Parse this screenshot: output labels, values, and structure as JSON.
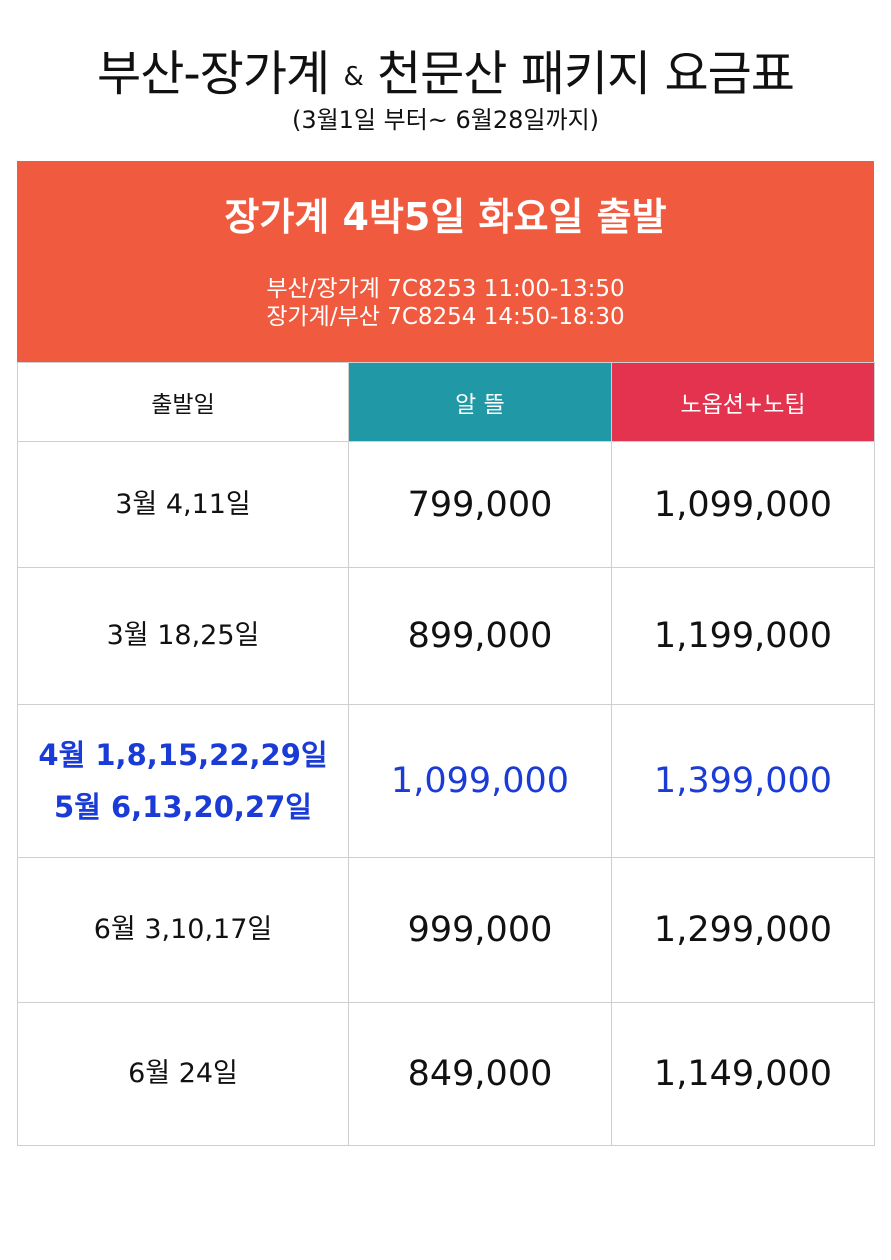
{
  "header": {
    "title_main": "부산-장가계",
    "title_amp": "&",
    "title_rest": "천문산 패키지 요금표",
    "subtitle": "(3월1일 부터~ 6월28일까지)"
  },
  "banner": {
    "title": "장가계 4박5일 화요일 출발",
    "flight_out": "부산/장가계 7C8253 11:00-13:50",
    "flight_return": "장가계/부산 7C8254 14:50-18:30",
    "color": "#f05a3e"
  },
  "table": {
    "columns": [
      {
        "label": "출발일",
        "color": "#ffffff"
      },
      {
        "label": "알 뜰",
        "color": "#2098a6"
      },
      {
        "label": "노옵션+노팁",
        "color": "#e3334e"
      }
    ],
    "rows": [
      {
        "date_line1": "3월 4,11일",
        "date_line2": "",
        "basic": "799,000",
        "premium": "1,099,000",
        "highlight": false
      },
      {
        "date_line1": "3월 18,25일",
        "date_line2": "",
        "basic": "899,000",
        "premium": "1,199,000",
        "highlight": false
      },
      {
        "date_line1": "4월 1,8,15,22,29일",
        "date_line2": "5월 6,13,20,27일",
        "basic": "1,099,000",
        "premium": "1,399,000",
        "highlight": true
      },
      {
        "date_line1": "6월 3,10,17일",
        "date_line2": "",
        "basic": "999,000",
        "premium": "1,299,000",
        "highlight": false
      },
      {
        "date_line1": "6월 24일",
        "date_line2": "",
        "basic": "849,000",
        "premium": "1,149,000",
        "highlight": false
      }
    ],
    "highlight_color": "#1a3bd6"
  }
}
